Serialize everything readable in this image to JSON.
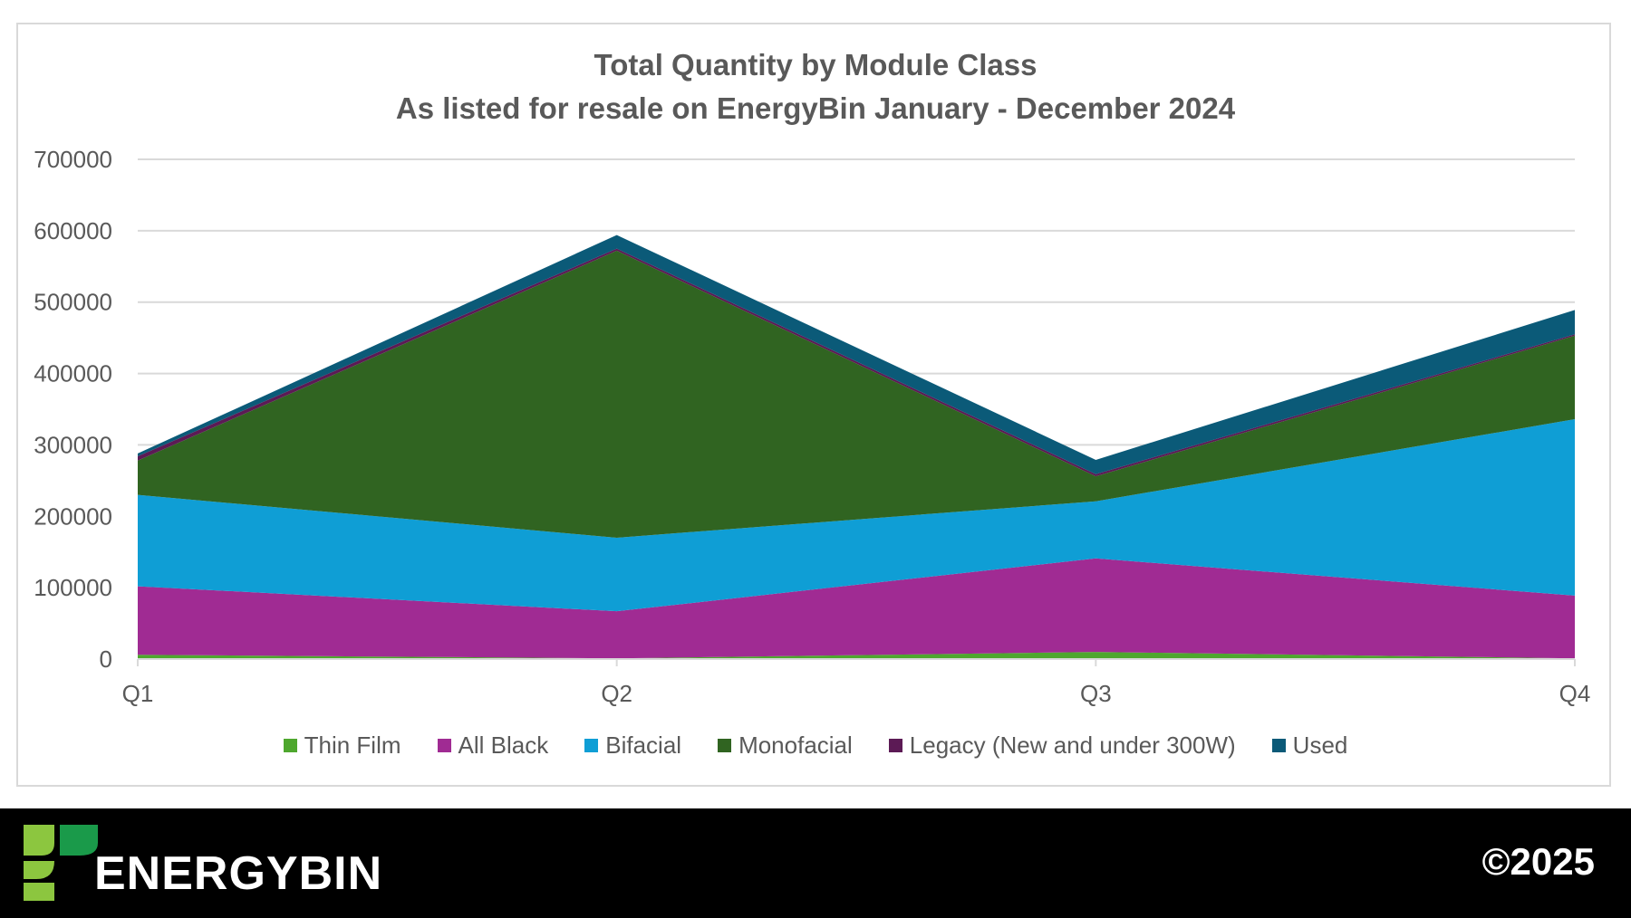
{
  "chart_data": {
    "type": "area",
    "stacked": true,
    "title": "Total Quantity by Module Class",
    "subtitle": "As listed for resale on EnergyBin January - December 2024",
    "categories": [
      "Q1",
      "Q2",
      "Q3",
      "Q4"
    ],
    "ylim": [
      0,
      700000
    ],
    "yticks": [
      "0",
      "100000",
      "200000",
      "300000",
      "400000",
      "500000",
      "600000",
      "700000"
    ],
    "grid": true,
    "legend_position": "bottom",
    "series": [
      {
        "name": "Thin Film",
        "color": "#4ea72e",
        "values": [
          6000,
          1000,
          10000,
          1000
        ]
      },
      {
        "name": "All Black",
        "color": "#a02b93",
        "values": [
          96000,
          66000,
          131000,
          88000
        ]
      },
      {
        "name": "Bifacial",
        "color": "#0f9ed5",
        "values": [
          128000,
          103000,
          80000,
          247000
        ]
      },
      {
        "name": "Monofacial",
        "color": "#306421",
        "values": [
          48000,
          402000,
          35000,
          117000
        ]
      },
      {
        "name": "Legacy (New and under 300W)",
        "color": "#5c1a55",
        "values": [
          6000,
          3000,
          3000,
          2000
        ]
      },
      {
        "name": "Used",
        "color": "#0b5a78",
        "values": [
          4000,
          19000,
          20000,
          34000
        ]
      }
    ]
  },
  "footer": {
    "logo_text": "ENERGYBIN",
    "copyright": "©2025"
  }
}
